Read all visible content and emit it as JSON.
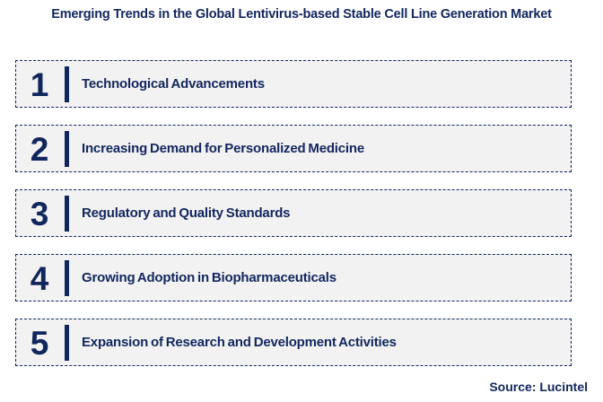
{
  "colors": {
    "navy": "#12265E",
    "box_background": "#F2F2F2",
    "page_background": "#FFFFFF"
  },
  "header": {
    "title": "Emerging Trends in the Global Lentivirus-based Stable Cell Line Generation Market"
  },
  "trends": [
    {
      "number": "1",
      "label": "Technological Advancements"
    },
    {
      "number": "2",
      "label": "Increasing Demand for Personalized Medicine"
    },
    {
      "number": "3",
      "label": "Regulatory and Quality Standards"
    },
    {
      "number": "4",
      "label": "Growing Adoption in Biopharmaceuticals"
    },
    {
      "number": "5",
      "label": "Expansion of Research and Development Activities"
    }
  ],
  "footer": {
    "source": "Source: Lucintel"
  }
}
